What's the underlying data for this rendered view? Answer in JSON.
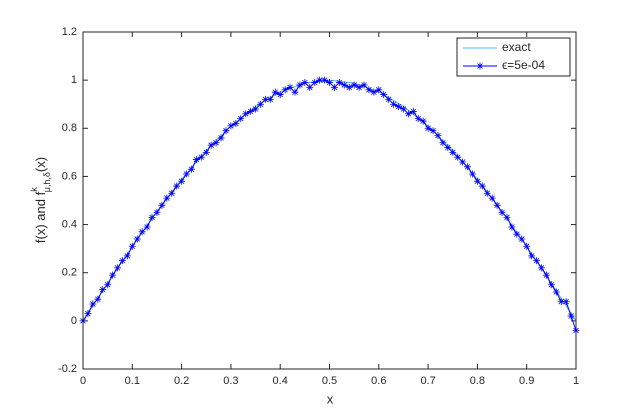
{
  "chart_data": {
    "type": "line",
    "xlabel": "x",
    "ylabel": {
      "main": "f(x) and f",
      "sup": "k",
      "sub": "μ,h,δ",
      "tail": "(x)"
    },
    "xlim": [
      0,
      1
    ],
    "ylim": [
      -0.2,
      1.2
    ],
    "xticks": [
      0,
      0.1,
      0.2,
      0.3,
      0.4,
      0.5,
      0.6,
      0.7,
      0.8,
      0.9,
      1
    ],
    "yticks": [
      -0.2,
      0,
      0.2,
      0.4,
      0.6,
      0.8,
      1,
      1.2
    ],
    "legend": "upper right",
    "series": [
      {
        "name": "exact",
        "color": "#4dbeee",
        "marker": "none",
        "x": [
          0,
          0.05,
          0.1,
          0.15,
          0.2,
          0.25,
          0.3,
          0.35,
          0.4,
          0.45,
          0.5,
          0.55,
          0.6,
          0.65,
          0.7,
          0.75,
          0.8,
          0.85,
          0.9,
          0.95,
          1
        ],
        "values": [
          0,
          0.1564,
          0.309,
          0.454,
          0.5878,
          0.7071,
          0.809,
          0.891,
          0.9511,
          0.9877,
          1,
          0.9877,
          0.9511,
          0.891,
          0.809,
          0.7071,
          0.5878,
          0.454,
          0.309,
          0.1564,
          0
        ]
      },
      {
        "name": "ϵ=5e-04",
        "color": "#0000ff",
        "marker": "asterisk",
        "x": [
          0,
          0.01,
          0.02,
          0.03,
          0.04,
          0.05,
          0.06,
          0.07,
          0.08,
          0.09,
          0.1,
          0.11,
          0.12,
          0.13,
          0.14,
          0.15,
          0.16,
          0.17,
          0.18,
          0.19,
          0.2,
          0.21,
          0.22,
          0.23,
          0.24,
          0.25,
          0.26,
          0.27,
          0.28,
          0.29,
          0.3,
          0.31,
          0.32,
          0.33,
          0.34,
          0.35,
          0.36,
          0.37,
          0.38,
          0.39,
          0.4,
          0.41,
          0.42,
          0.43,
          0.44,
          0.45,
          0.46,
          0.47,
          0.48,
          0.49,
          0.5,
          0.51,
          0.52,
          0.53,
          0.54,
          0.55,
          0.56,
          0.57,
          0.58,
          0.59,
          0.6,
          0.61,
          0.62,
          0.63,
          0.64,
          0.65,
          0.66,
          0.67,
          0.68,
          0.69,
          0.7,
          0.71,
          0.72,
          0.73,
          0.74,
          0.75,
          0.76,
          0.77,
          0.78,
          0.79,
          0.8,
          0.81,
          0.82,
          0.83,
          0.84,
          0.85,
          0.86,
          0.87,
          0.88,
          0.89,
          0.9,
          0.91,
          0.92,
          0.93,
          0.94,
          0.95,
          0.96,
          0.97,
          0.98,
          0.99,
          1
        ],
        "values": [
          0,
          0.03,
          0.07,
          0.09,
          0.13,
          0.15,
          0.19,
          0.22,
          0.25,
          0.27,
          0.31,
          0.34,
          0.37,
          0.39,
          0.43,
          0.45,
          0.48,
          0.51,
          0.53,
          0.56,
          0.58,
          0.61,
          0.63,
          0.67,
          0.68,
          0.7,
          0.73,
          0.74,
          0.76,
          0.79,
          0.81,
          0.82,
          0.84,
          0.86,
          0.87,
          0.88,
          0.9,
          0.92,
          0.92,
          0.95,
          0.94,
          0.96,
          0.97,
          0.95,
          0.98,
          0.99,
          0.97,
          0.99,
          1,
          1,
          0.99,
          0.97,
          0.99,
          0.98,
          0.97,
          0.98,
          0.97,
          0.98,
          0.96,
          0.95,
          0.96,
          0.94,
          0.92,
          0.9,
          0.89,
          0.88,
          0.86,
          0.87,
          0.84,
          0.83,
          0.8,
          0.79,
          0.77,
          0.74,
          0.72,
          0.7,
          0.68,
          0.66,
          0.64,
          0.61,
          0.58,
          0.56,
          0.53,
          0.51,
          0.48,
          0.45,
          0.43,
          0.39,
          0.36,
          0.34,
          0.31,
          0.27,
          0.25,
          0.22,
          0.19,
          0.15,
          0.12,
          0.08,
          0.08,
          0.02,
          -0.04
        ]
      }
    ]
  }
}
